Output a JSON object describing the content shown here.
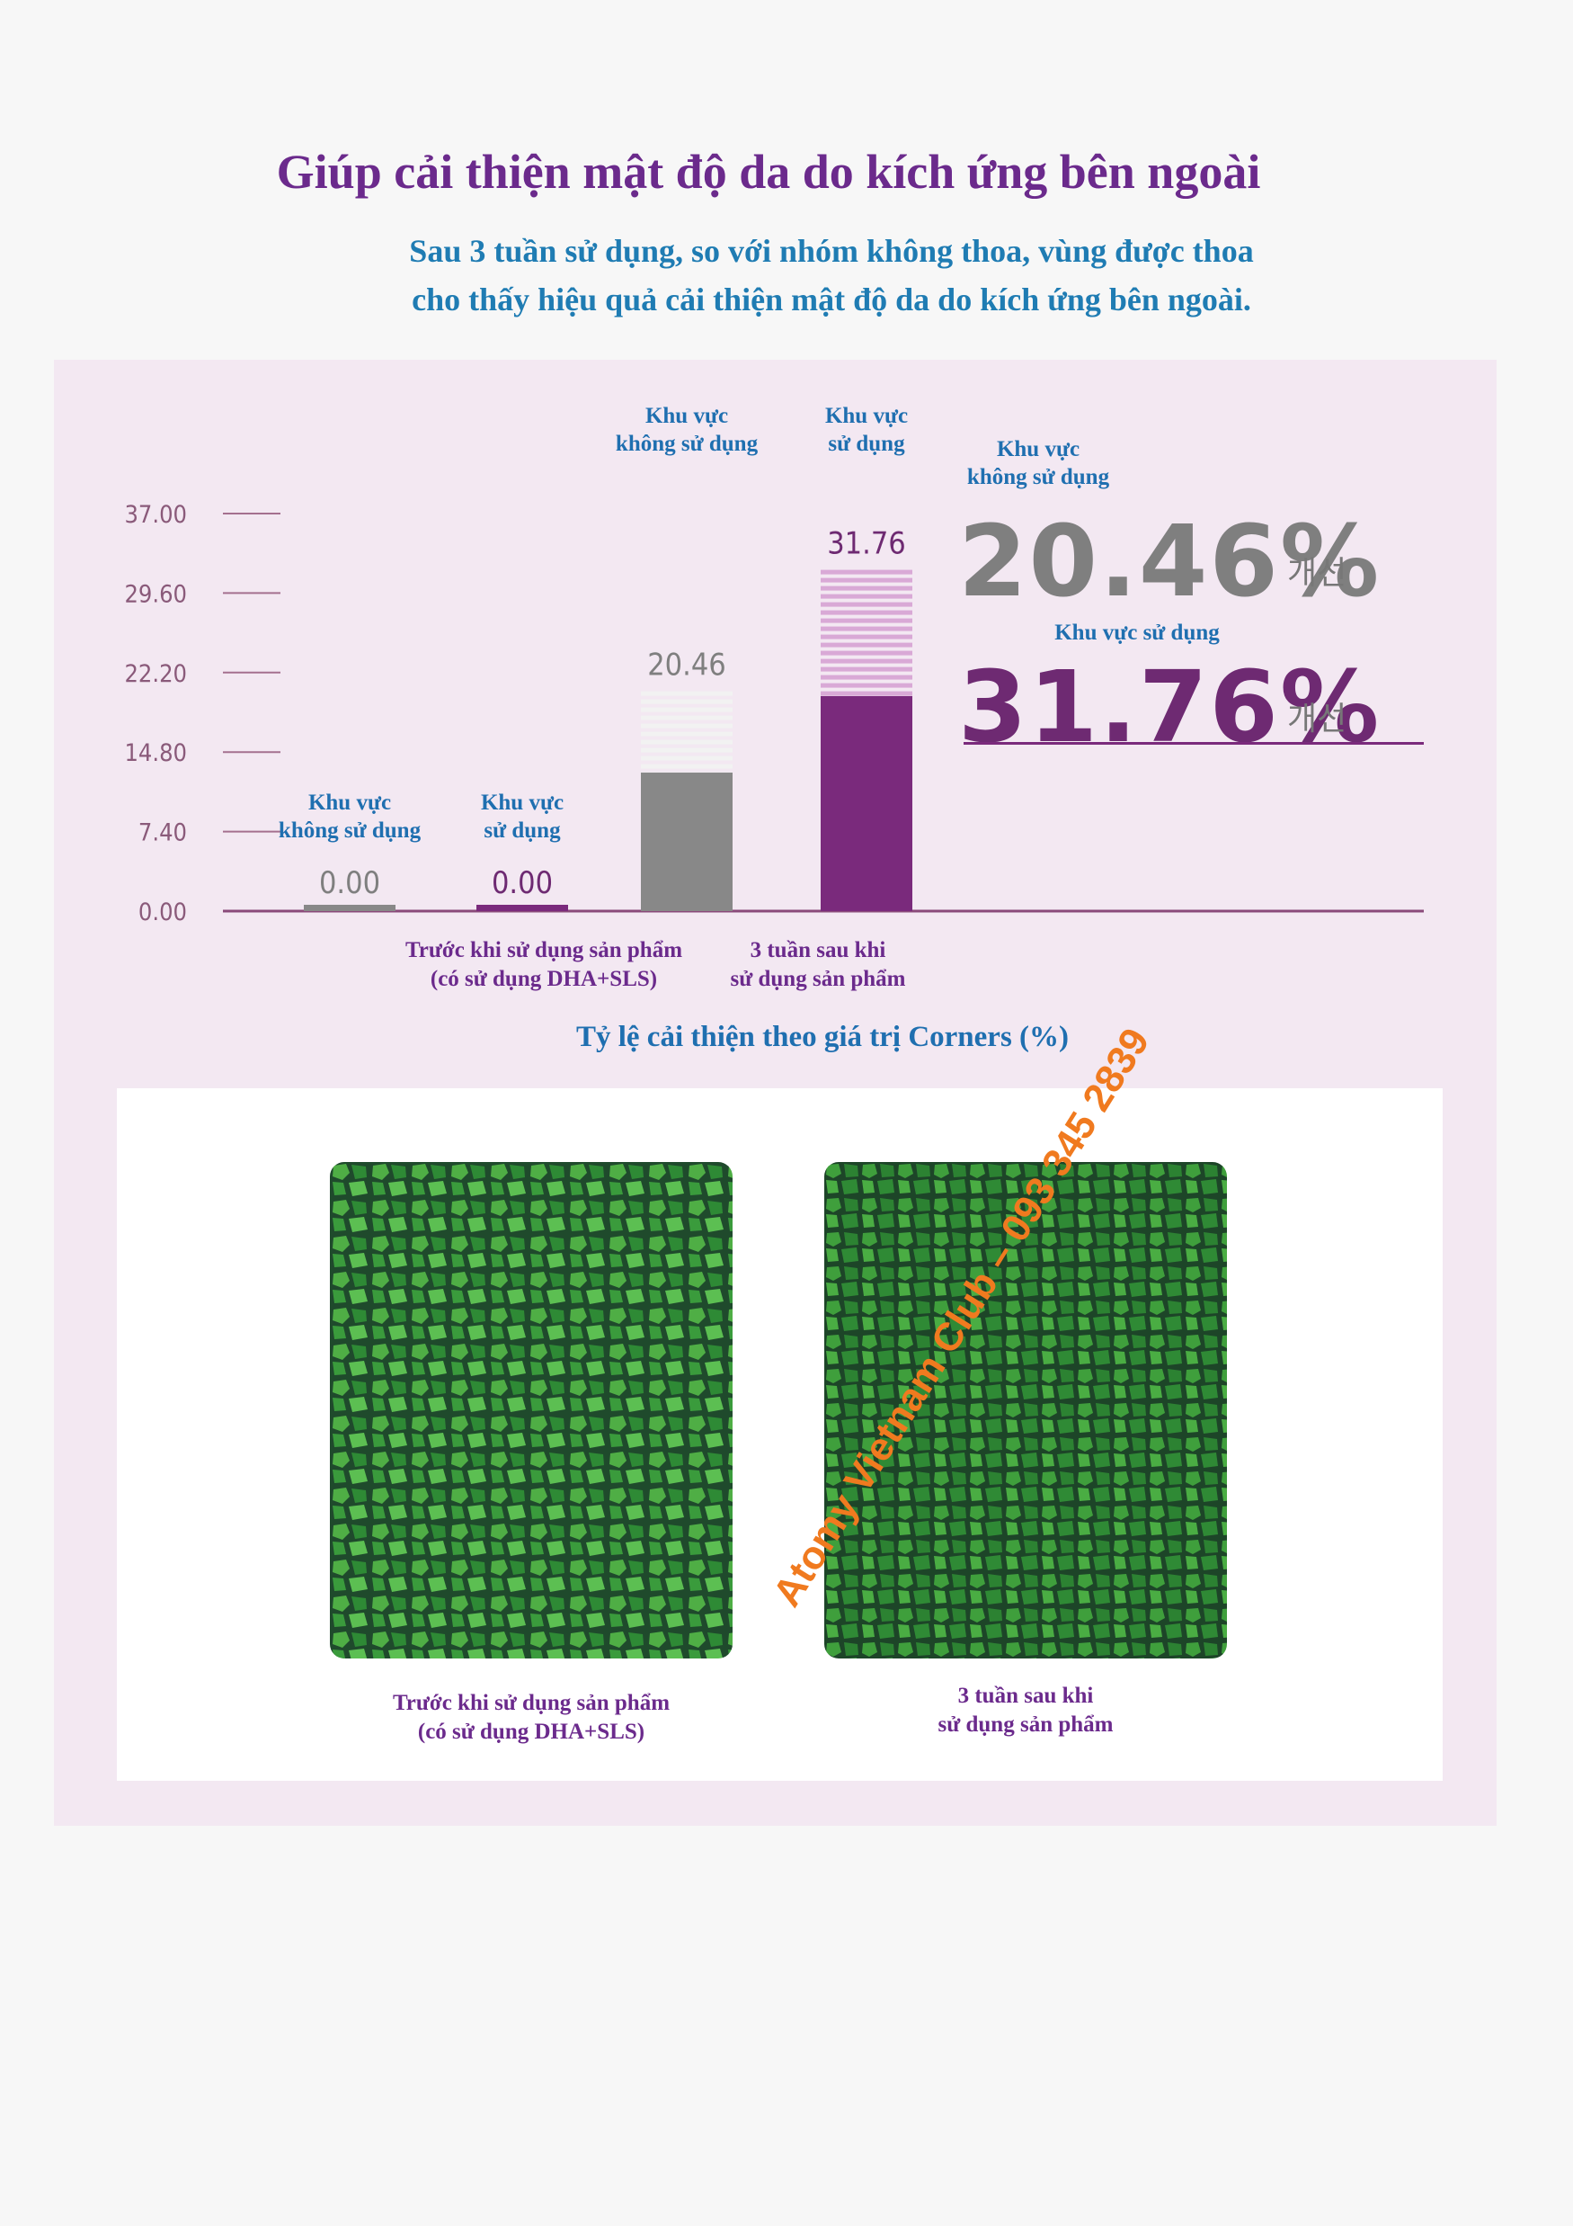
{
  "header": {
    "title": "Giúp cải thiện mật độ da do kích ứng bên ngoài",
    "subtitle_line1": "Sau 3 tuần sử dụng, so với nhóm không thoa, vùng được thoa",
    "subtitle_line2": "cho thấy hiệu quả cải thiện mật độ da do kích ứng bên ngoài."
  },
  "chart_data": {
    "type": "bar",
    "categories": [
      "Trước khi sử dụng sản phẩm (có sử dụng DHA+SLS)",
      "3 tuần sau khi sử dụng sản phẩm"
    ],
    "series": [
      {
        "name": "Khu vực không sử dụng",
        "values": [
          0.0,
          20.46
        ],
        "color": "#888888"
      },
      {
        "name": "Khu vực sử dụng",
        "values": [
          0.0,
          31.76
        ],
        "color": "#7a2a7c"
      }
    ],
    "ylim": [
      0,
      37
    ],
    "yticks": [
      "37.00",
      "29.60",
      "22.20",
      "14.80",
      "7.40",
      "0.00"
    ],
    "value_labels": [
      "0.00",
      "0.00",
      "20.46",
      "31.76"
    ],
    "bar_labels": [
      [
        "Khu vực",
        "không sử dụng"
      ],
      [
        "Khu vực",
        "sử dụng"
      ],
      [
        "Khu vực",
        "không sử dụng"
      ],
      [
        "Khu vực",
        "sử dụng"
      ]
    ],
    "group_labels": [
      [
        "Trước khi sử dụng sản phẩm",
        "(có sử dụng DHA+SLS)"
      ],
      [
        "3 tuần sau khi",
        "sử dụng sản phẩm"
      ]
    ],
    "caption": "Tỷ lệ cải thiện theo giá trị Corners (%)"
  },
  "summary": {
    "unused_label_1": "Khu vực",
    "unused_label_2": "không sử dụng",
    "unused_pct": "20.46%",
    "used_label": "Khu vực sử dụng",
    "used_pct": "31.76%",
    "suffix": "개선"
  },
  "images": {
    "before_caption_1": "Trước khi sử dụng sản phẩm",
    "before_caption_2": "(có sử dụng DHA+SLS)",
    "after_caption_1": "3 tuần sau khi",
    "after_caption_2": "sử dụng sản phẩm"
  },
  "watermark": "Atomy Vietnam Club – 093 345 2839",
  "colors": {
    "title": "#6b2a8c",
    "subtitle": "#1f7cb3",
    "grey_bar": "#888888",
    "purple_bar": "#7a2a7c",
    "watermark": "#f07a1f"
  }
}
